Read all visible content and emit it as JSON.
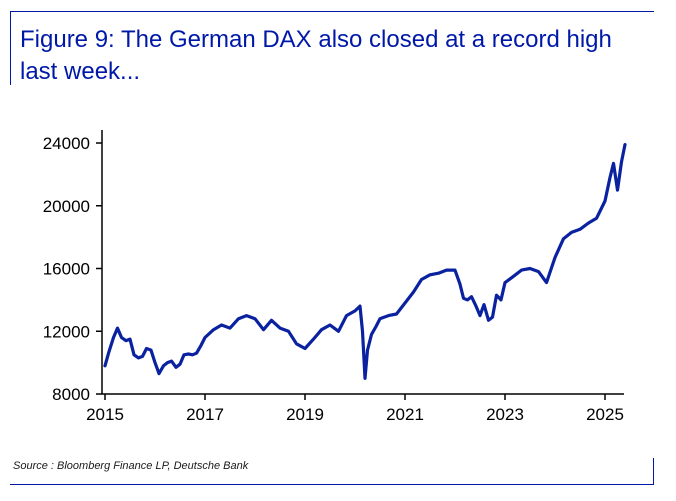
{
  "title": "Figure 9: The German DAX also closed at a record high last week...",
  "source": "Source : Bloomberg Finance LP, Deutsche Bank",
  "colors": {
    "brand": "#0018a8",
    "series": "#0a22a0"
  },
  "chart_data": {
    "type": "line",
    "xlim": [
      2015,
      2025.45
    ],
    "ylim": [
      8000,
      24000
    ],
    "x_ticks": [
      "2015",
      "2017",
      "2019",
      "2021",
      "2023",
      "2025"
    ],
    "y_ticks": [
      "8000",
      "12000",
      "16000",
      "20000",
      "24000"
    ],
    "series": [
      {
        "x": [
          2015.0,
          2015.08,
          2015.17,
          2015.25,
          2015.33,
          2015.42,
          2015.5,
          2015.58,
          2015.67,
          2015.75,
          2015.83,
          2015.92,
          2016.0,
          2016.08,
          2016.17,
          2016.25,
          2016.33,
          2016.42,
          2016.5,
          2016.58,
          2016.67,
          2016.75,
          2016.83,
          2016.92,
          2017.0,
          2017.17,
          2017.33,
          2017.5,
          2017.67,
          2017.83,
          2018.0,
          2018.17,
          2018.33,
          2018.5,
          2018.67,
          2018.83,
          2019.0,
          2019.17,
          2019.33,
          2019.5,
          2019.67,
          2019.83,
          2020.0,
          2020.1,
          2020.15,
          2020.2,
          2020.25,
          2020.33,
          2020.42,
          2020.5,
          2020.67,
          2020.83,
          2021.0,
          2021.17,
          2021.33,
          2021.5,
          2021.67,
          2021.83,
          2022.0,
          2022.1,
          2022.17,
          2022.25,
          2022.33,
          2022.42,
          2022.5,
          2022.58,
          2022.67,
          2022.75,
          2022.83,
          2022.92,
          2023.0,
          2023.17,
          2023.33,
          2023.5,
          2023.67,
          2023.83,
          2024.0,
          2024.17,
          2024.33,
          2024.5,
          2024.67,
          2024.83,
          2025.0,
          2025.1,
          2025.17,
          2025.25,
          2025.33,
          2025.4
        ],
        "y": [
          9800,
          10700,
          11600,
          12200,
          11600,
          11400,
          11500,
          10500,
          10300,
          10400,
          10900,
          10800,
          10000,
          9300,
          9800,
          10000,
          10100,
          9700,
          9900,
          10500,
          10550,
          10500,
          10600,
          11100,
          11600,
          12100,
          12400,
          12200,
          12800,
          13000,
          12800,
          12100,
          12700,
          12200,
          12000,
          11200,
          10900,
          11500,
          12100,
          12400,
          12000,
          13000,
          13300,
          13600,
          12000,
          9000,
          10800,
          11800,
          12300,
          12800,
          13000,
          13100,
          13800,
          14500,
          15300,
          15600,
          15700,
          15900,
          15900,
          15000,
          14100,
          14000,
          14200,
          13600,
          13000,
          13700,
          12700,
          12900,
          14300,
          14000,
          15100,
          15500,
          15900,
          16000,
          15800,
          15100,
          16700,
          17900,
          18300,
          18500,
          18900,
          19200,
          20300,
          21800,
          22700,
          21000,
          22800,
          23900
        ]
      }
    ]
  }
}
